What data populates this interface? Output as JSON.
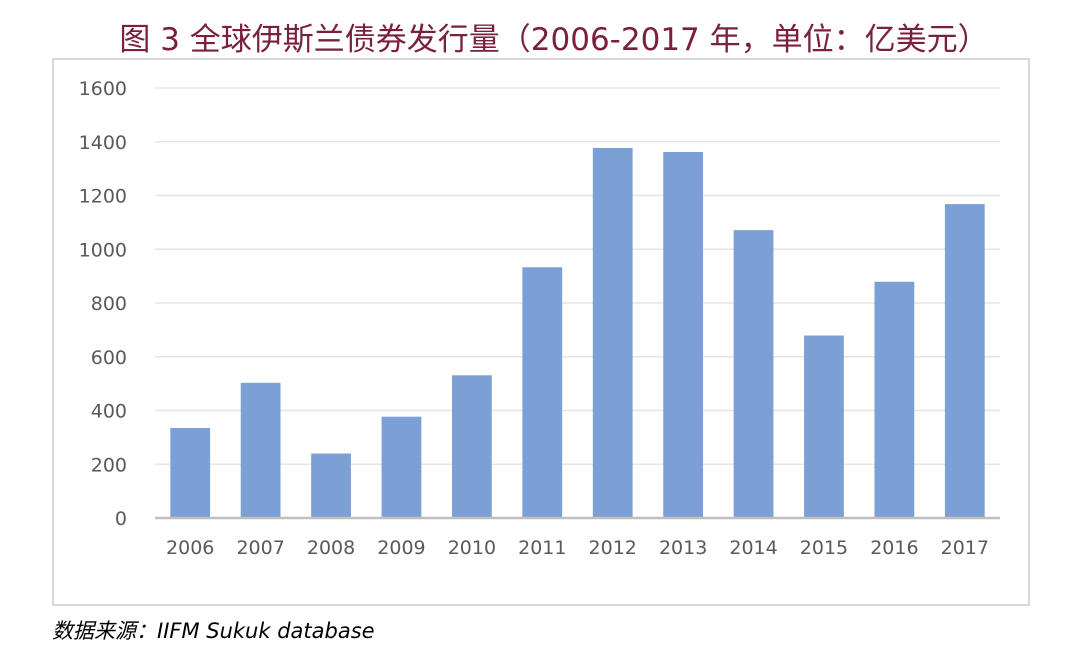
{
  "chart_data": {
    "type": "bar",
    "title": "图 3 全球伊斯兰债券发行量（2006-2017 年，单位：亿美元）",
    "categories": [
      "2006",
      "2007",
      "2008",
      "2009",
      "2010",
      "2011",
      "2012",
      "2013",
      "2014",
      "2015",
      "2016",
      "2017"
    ],
    "series": [
      {
        "values": [
          335,
          503,
          240,
          377,
          531,
          933,
          1377,
          1362,
          1071,
          679,
          879,
          1168
        ],
        "color": "#7c9fd6"
      }
    ],
    "ylim": [
      0,
      1600
    ],
    "yticks": [
      0,
      200,
      400,
      600,
      800,
      1000,
      1200,
      1400,
      1600
    ],
    "xlabel": "",
    "ylabel": "",
    "grid": true,
    "legend": "none"
  },
  "colors": {
    "title": "#7a1f3d",
    "bar": "#7c9fd6",
    "grid": "#e6e6e6",
    "frame": "#d9d9d9",
    "axis_line": "#bfbfbf",
    "tick_text": "#595959"
  },
  "source_note": "数据来源：IIFM Sukuk database"
}
